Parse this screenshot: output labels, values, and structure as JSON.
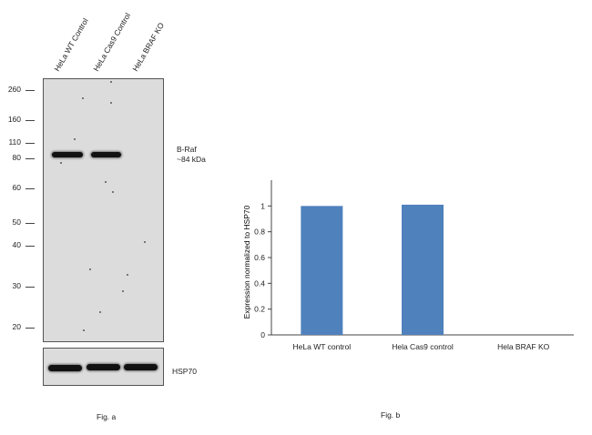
{
  "panel_a": {
    "lanes": [
      "HeLa WT Control",
      "HeLa Cas9 Control",
      "HeLa BRAF KO"
    ],
    "markers": [
      "260",
      "160",
      "110",
      "80",
      "60",
      "50",
      "40",
      "30",
      "20"
    ],
    "target_label": "B-Raf",
    "target_size": "~84 kDa",
    "loading_control": "HSP70",
    "caption": "Fig. a"
  },
  "panel_b": {
    "caption": "Fig. b"
  },
  "chart_data": {
    "type": "bar",
    "categories": [
      "HeLa WT control",
      "Hela Cas9 control",
      "Hela BRAF KO"
    ],
    "values": [
      1.0,
      1.01,
      0.0
    ],
    "title": "",
    "xlabel": "",
    "ylabel": "Expression normalized to HSP70",
    "ylim": [
      0,
      1.2
    ],
    "yticks": [
      "0",
      "0.2",
      "0.4",
      "0.6",
      "0.8",
      "1"
    ],
    "grid": false,
    "bar_color": "#4f81bd"
  }
}
